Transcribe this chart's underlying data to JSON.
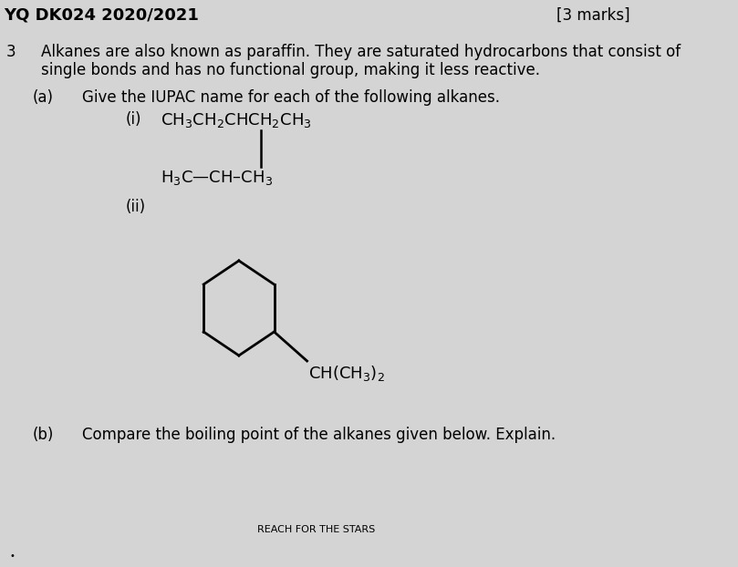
{
  "bg_color": "#d4d4d4",
  "header_left": "YQ DK024 2020/2021",
  "header_right": "[3 marks]",
  "question_number": "3",
  "intro_text_line1": "Alkanes are also known as paraffin. They are saturated hydrocarbons that consist of",
  "intro_text_line2": "single bonds and has no functional group, making it less reactive.",
  "part_a_label": "(a)",
  "part_a_text": "Give the IUPAC name for each of the following alkanes.",
  "part_i_label": "(i)",
  "part_ii_label": "(ii)",
  "part_b_label": "(b)",
  "part_b_text": "Compare the boiling point of the alkanes given below. Explain.",
  "footer": "REACH FOR THE STARS",
  "title_fontsize": 13,
  "body_fontsize": 12,
  "small_fontsize": 8
}
